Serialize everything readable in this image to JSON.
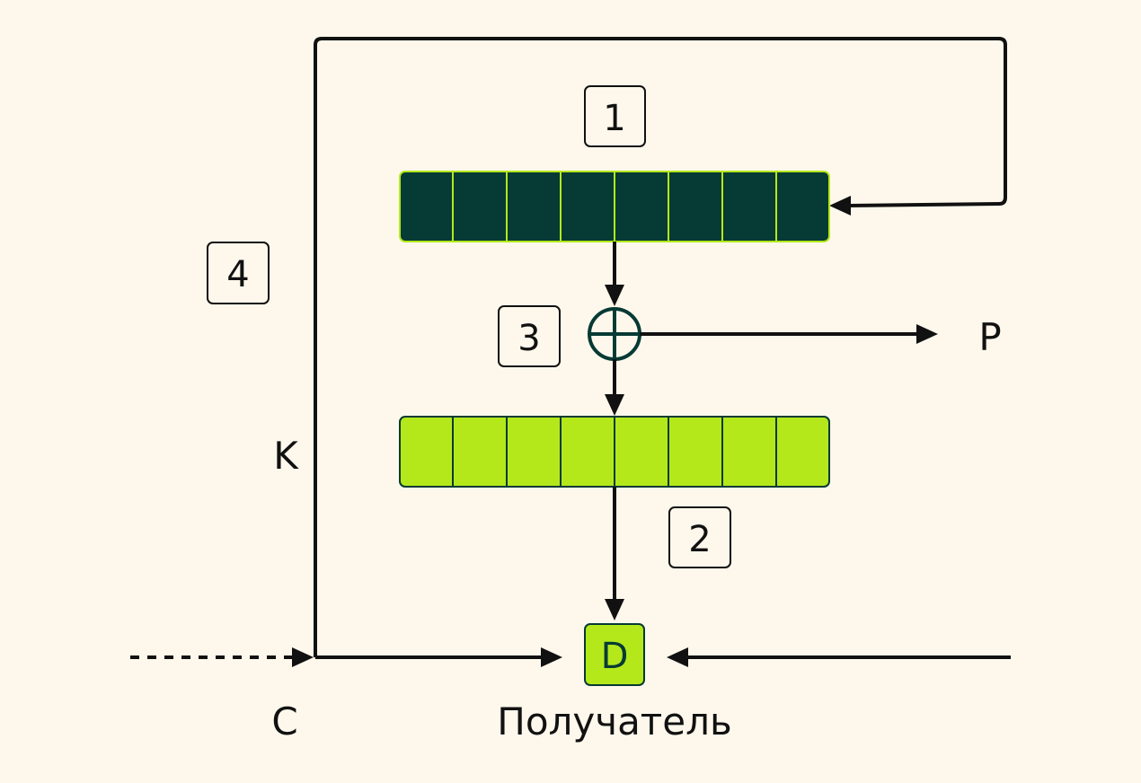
{
  "labels": {
    "step1": "1",
    "step2": "2",
    "step3": "3",
    "step4": "4",
    "p": "P",
    "k": "K",
    "c": "C",
    "d": "D",
    "receiver": "Получатель"
  },
  "registers": {
    "top_cells": 8,
    "bottom_cells": 8
  },
  "colors": {
    "background": "#fef8ec",
    "top_register_fill": "#063a34",
    "bottom_register_fill": "#b4e81b",
    "register_stroke": "#b4e81b",
    "bottom_register_stroke": "#063a34",
    "line": "#111111",
    "xor_stroke": "#063a34",
    "d_box_fill": "#b4e81b"
  }
}
